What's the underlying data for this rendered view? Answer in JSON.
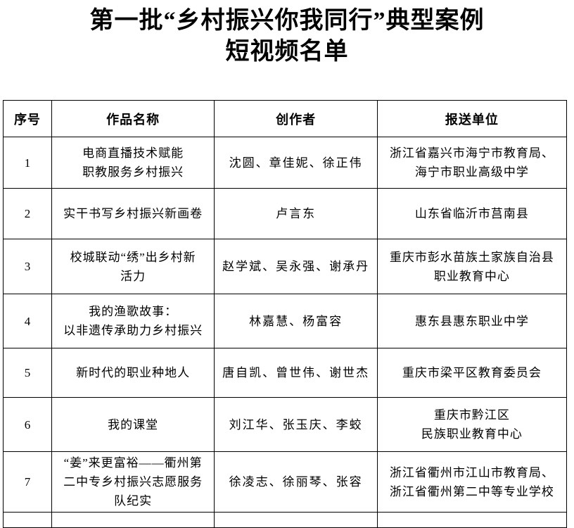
{
  "document": {
    "title_line1": "第一批“乡村振兴你我同行”典型案例",
    "title_line2": "短视频名单"
  },
  "table": {
    "headers": [
      "序号",
      "作品名称",
      "创作者",
      "报送单位"
    ],
    "rows": [
      {
        "no": "1",
        "work": "电商直播技术赋能\n职教服务乡村振兴",
        "creators": "沈圆、章佳妮、徐正伟",
        "org": "浙江省嘉兴市海宁市教育局、\n海宁市职业高级中学"
      },
      {
        "no": "2",
        "work": "实干书写乡村振兴新画卷",
        "creators": "卢言东",
        "org": "山东省临沂市莒南县"
      },
      {
        "no": "3",
        "work": "校城联动“绣”出乡村新\n活力",
        "creators": "赵学斌、吴永强、谢承丹",
        "org": "重庆市彭水苗族土家族自治县\n职业教育中心"
      },
      {
        "no": "4",
        "work": "我的渔歌故事：\n以非遗传承助力乡村振兴",
        "creators": "林嘉慧、杨富容",
        "org": "惠东县惠东职业中学"
      },
      {
        "no": "5",
        "work": "新时代的职业种地人",
        "creators": "唐自凯、曾世伟、谢世杰",
        "org": "重庆市梁平区教育委员会"
      },
      {
        "no": "6",
        "work": "我的课堂",
        "creators": "刘江华、张玉庆、李蛟",
        "org": "重庆市黔江区\n民族职业教育中心"
      },
      {
        "no": "7",
        "work": "“姜”来更富裕——衢州第\n二中专乡村振兴志愿服务\n队纪实",
        "creators": "徐凌志、徐丽琴、张容",
        "org": "浙江省衢州市江山市教育局、\n浙江省衢州第二中等专业学校"
      }
    ]
  }
}
